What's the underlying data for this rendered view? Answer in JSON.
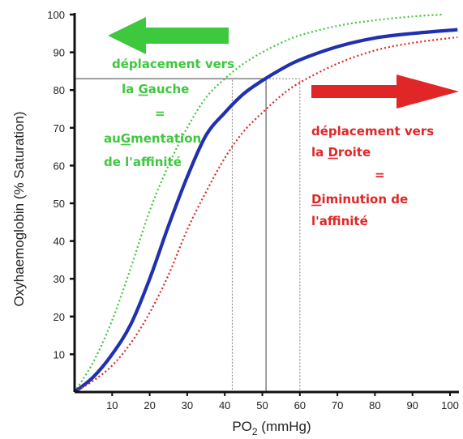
{
  "chart_data": {
    "type": "line",
    "xlabel_main": "PO",
    "xlabel_sub": "2",
    "xlabel_unit": " (mmHg)",
    "ylabel": "Oxyhaemoglobin (% Saturation)",
    "xlim": [
      0,
      100
    ],
    "ylim": [
      0,
      100
    ],
    "x_ticks": [
      "10",
      "20",
      "30",
      "40",
      "50",
      "60",
      "70",
      "80",
      "90",
      "100"
    ],
    "y_ticks": [
      "10",
      "20",
      "30",
      "40",
      "50",
      "60",
      "70",
      "80",
      "90",
      "100"
    ],
    "colors": {
      "left": "#3ec83e",
      "normal": "#2030b0",
      "right": "#e02626",
      "axis": "#111111",
      "guide": "#888888"
    },
    "series": [
      {
        "key": "left",
        "style": "dotted",
        "x": [
          0,
          5,
          10,
          15,
          20,
          25,
          30,
          35,
          40,
          45,
          50,
          55,
          60,
          70,
          80,
          90,
          98
        ],
        "y": [
          0,
          8,
          19,
          33,
          48,
          60,
          70,
          78,
          83,
          87,
          90,
          92.5,
          94.5,
          97,
          98.5,
          99.5,
          100
        ]
      },
      {
        "key": "normal",
        "style": "solid",
        "x": [
          0,
          5,
          10,
          15,
          20,
          25,
          30,
          35,
          40,
          45,
          50,
          55,
          60,
          70,
          80,
          90,
          102
        ],
        "y": [
          0,
          4,
          10,
          18,
          30,
          44,
          57,
          68,
          74,
          79,
          82.5,
          85.5,
          88,
          91.5,
          93.8,
          95,
          96
        ]
      },
      {
        "key": "right",
        "style": "dotted",
        "x": [
          0,
          5,
          10,
          15,
          20,
          25,
          30,
          35,
          40,
          45,
          50,
          55,
          60,
          70,
          80,
          90,
          102
        ],
        "y": [
          0,
          3,
          7,
          13,
          21,
          31,
          43,
          53,
          62,
          69,
          74,
          78.5,
          82,
          87,
          90.5,
          92.5,
          94
        ]
      }
    ],
    "guides": [
      {
        "style": "solid",
        "x": 51,
        "y": 83
      },
      {
        "style": "dotted",
        "x": 42,
        "y": 83
      },
      {
        "style": "dotted",
        "x": 60,
        "y": 83
      }
    ]
  },
  "annotations": {
    "left": [
      "déplacement vers",
      "la Gauche",
      "=",
      "auGmentation",
      "de l'affinité"
    ],
    "right": [
      "déplacement vers",
      "la Droite",
      "=",
      "Diminution de",
      "l'affinité"
    ]
  }
}
